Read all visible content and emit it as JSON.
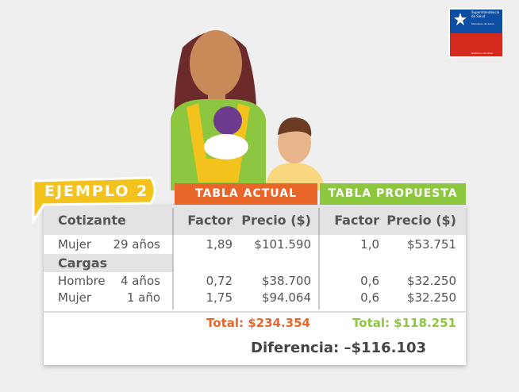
{
  "logo": {
    "name": "Superintendencia de Salud",
    "ministry": "Ministerio de Salud",
    "government": "Gobierno de Chile"
  },
  "badge": "EJEMPLO 2",
  "table": {
    "actual_header": "TABLA ACTUAL",
    "proposed_header": "TABLA PROPUESTA",
    "columns": [
      "Cotizante",
      "Factor",
      "Precio ($)",
      "Factor",
      "Precio ($)"
    ],
    "rows": [
      [
        "Mujer",
        "29 años",
        "1,89",
        "$101.590",
        "1,0",
        "$53.751"
      ],
      [
        "Hombre",
        "4 años",
        "0,72",
        "$38.700",
        "0,6",
        "$32.250"
      ],
      [
        "Mujer",
        "1 año",
        "1,75",
        "$94.064",
        "0,6",
        "$32.250"
      ]
    ],
    "cargas_label": "Cargas",
    "totals": [
      "Total: $234.354",
      "Total: $118.251"
    ],
    "difference": "Diferencia: –$116.103"
  }
}
